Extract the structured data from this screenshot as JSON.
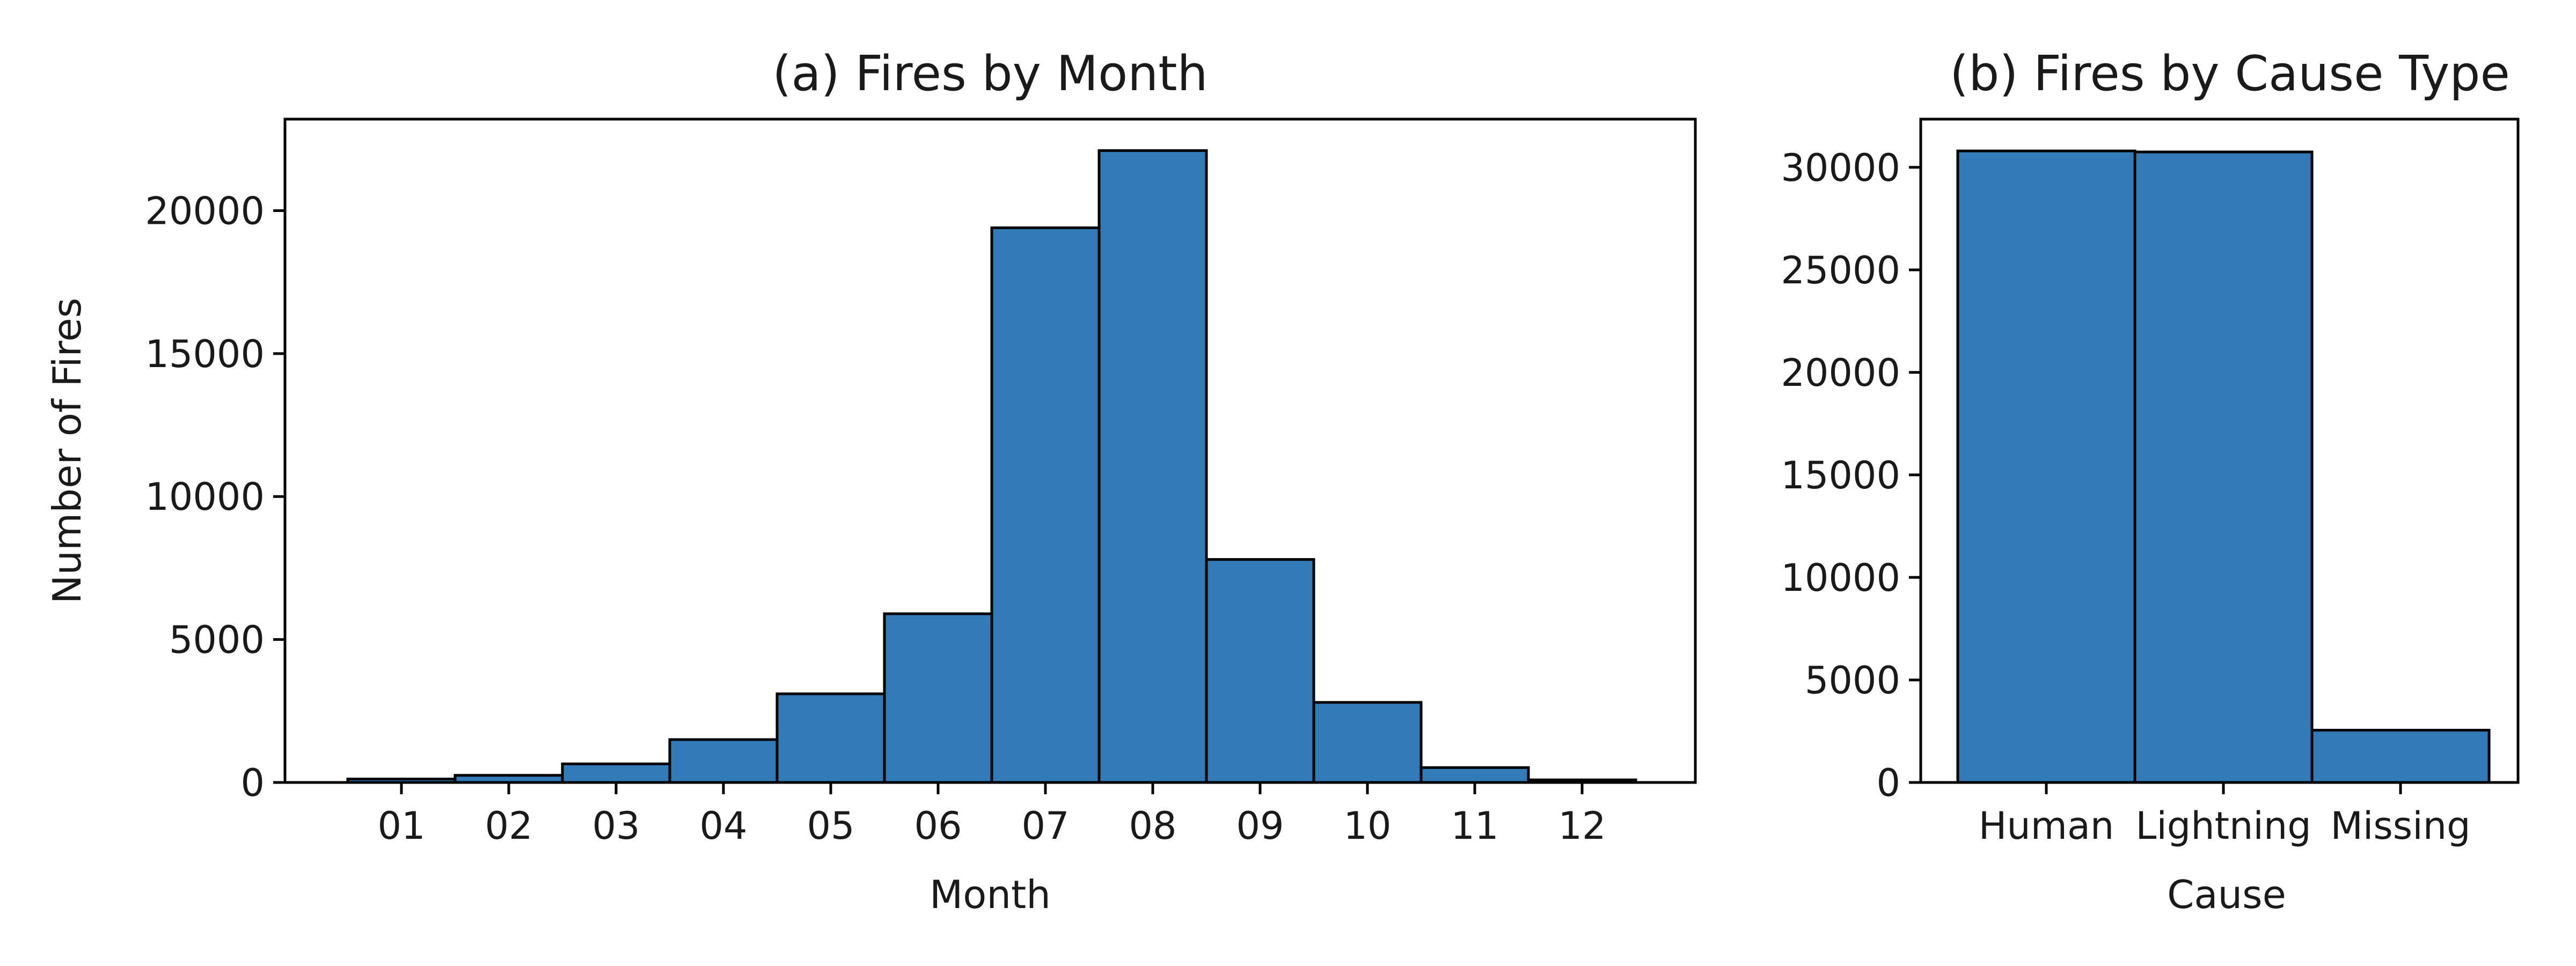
{
  "chart_data": [
    {
      "type": "bar",
      "title": "(a) Fires by Month",
      "xlabel": "Month",
      "ylabel": "Number of Fires",
      "categories": [
        "01",
        "02",
        "03",
        "04",
        "05",
        "06",
        "07",
        "08",
        "09",
        "10",
        "11",
        "12"
      ],
      "values": [
        120,
        250,
        650,
        1500,
        3100,
        5900,
        19400,
        22100,
        7800,
        2800,
        520,
        90
      ],
      "ylim": [
        0,
        23200
      ],
      "yticks": [
        0,
        5000,
        10000,
        15000,
        20000
      ],
      "color": "#337bb7",
      "edgecolor": "#000000",
      "grid": false
    },
    {
      "type": "bar",
      "title": "(b) Fires by Cause Type",
      "xlabel": "Cause",
      "ylabel": "",
      "categories": [
        "Human",
        "Lightning",
        "Missing"
      ],
      "values": [
        30800,
        30750,
        2550
      ],
      "ylim": [
        0,
        32350
      ],
      "yticks": [
        0,
        5000,
        10000,
        15000,
        20000,
        25000,
        30000
      ],
      "color": "#337bb7",
      "edgecolor": "#000000",
      "grid": false
    }
  ]
}
